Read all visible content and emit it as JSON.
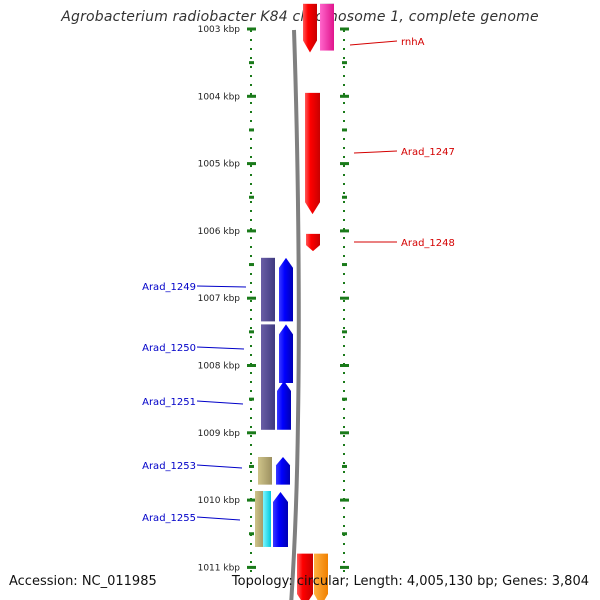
{
  "title": "Agrobacterium radiobacter K84 chromosome 1, complete genome",
  "footer": {
    "accession": "Accession: NC_011985",
    "summary": "Topology: circular; Length: 4,005,130 bp; Genes: 3,804"
  },
  "colors": {
    "forward_label": "#d40000",
    "reverse_label": "#0000c8",
    "tick": "#1a7a1a",
    "backbone": "#808080"
  },
  "scale": {
    "unit": "kbp",
    "ticks": [
      "1003 kbp",
      "1004 kbp",
      "1005 kbp",
      "1006 kbp",
      "1007 kbp",
      "1008 kbp",
      "1009 kbp",
      "1010 kbp",
      "1011 kbp"
    ]
  },
  "forward_genes": [
    {
      "label": "rnhA",
      "start_kbp": 1002.92,
      "end_kbp": 1003.35
    },
    {
      "label": "Arad_1247",
      "start_kbp": 1003.95,
      "end_kbp": 1005.75
    },
    {
      "label": "Arad_1248",
      "start_kbp": 1006.0,
      "end_kbp": 1006.3
    },
    {
      "label": "",
      "start_kbp": 1010.9,
      "end_kbp": 1011.5
    }
  ],
  "reverse_genes": [
    {
      "label": "Arad_1249",
      "start_kbp": 1006.4,
      "end_kbp": 1007.3
    },
    {
      "label": "Arad_1250",
      "start_kbp": 1007.3,
      "end_kbp": 1008.2
    },
    {
      "label": "Arad_1251",
      "start_kbp": 1008.2,
      "end_kbp": 1009.0
    },
    {
      "label": "",
      "start_kbp": 1009.3,
      "end_kbp": 1009.8
    },
    {
      "label": "Arad_1253",
      "start_kbp": 1009.3,
      "end_kbp": 1009.8
    },
    {
      "label": "Arad_1255",
      "start_kbp": 1009.85,
      "end_kbp": 1010.8
    }
  ]
}
